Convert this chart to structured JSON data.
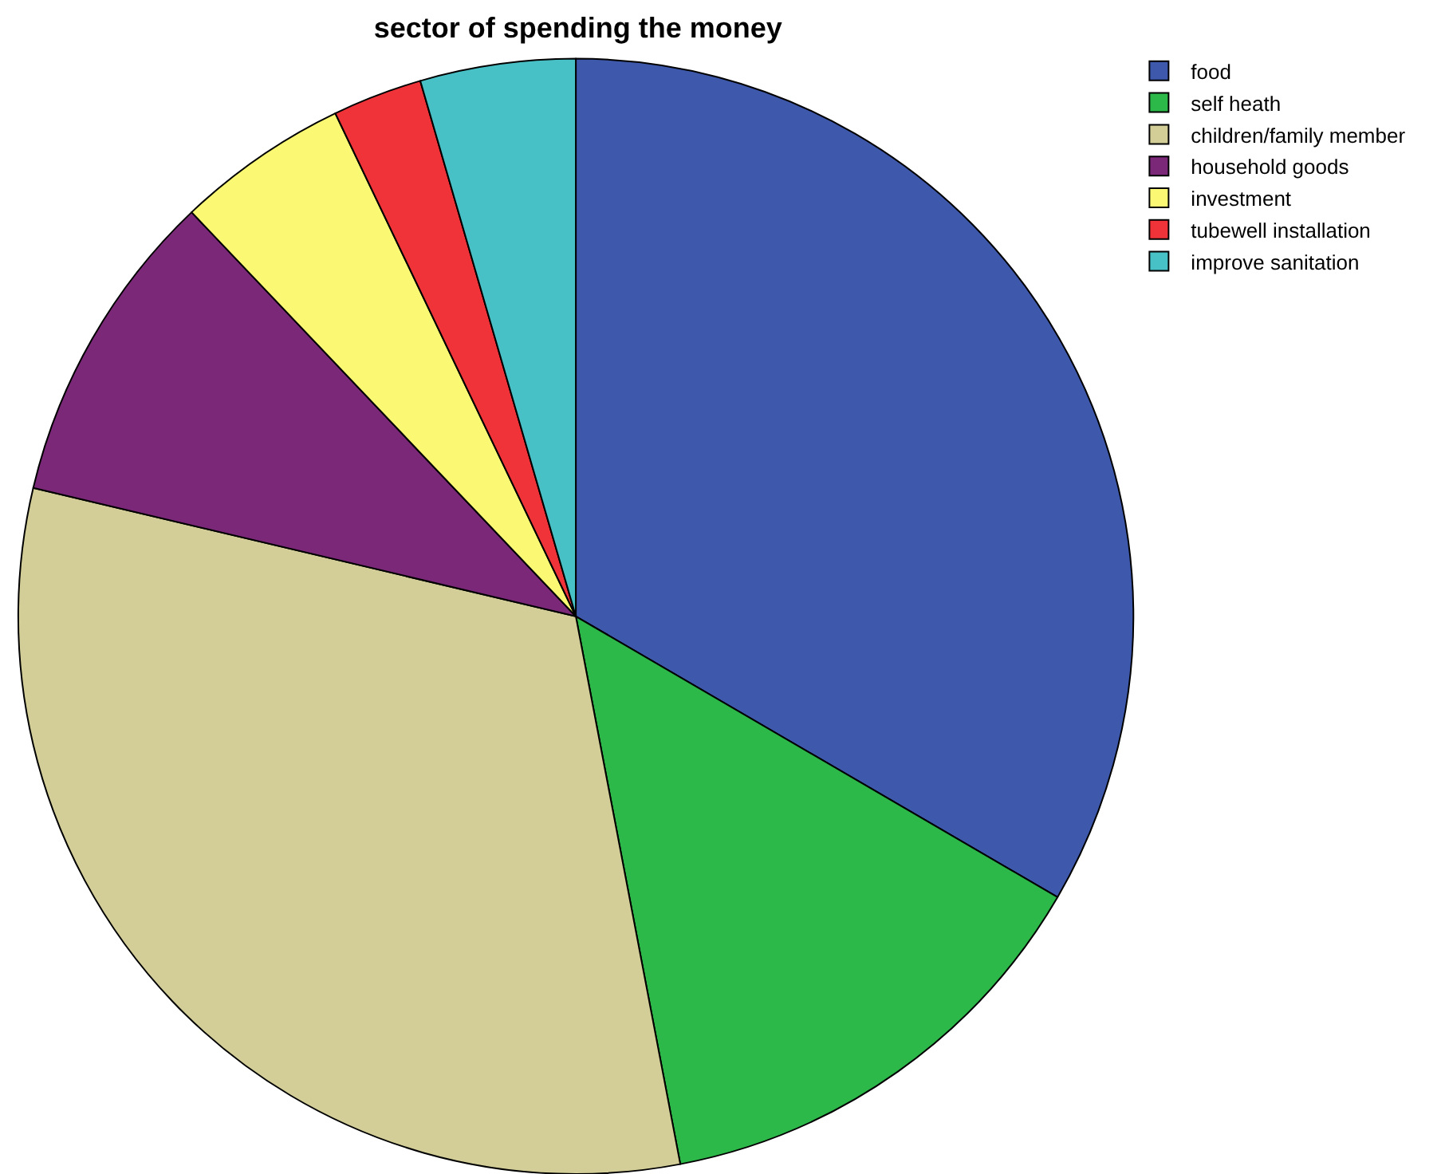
{
  "chart_data": {
    "type": "pie",
    "title": "sector of spending the money",
    "categories": [
      "food",
      "self heath",
      "children/family member",
      "household goods",
      "investment",
      "tubewell installation",
      "improve sanitation"
    ],
    "values": [
      33.4,
      13.6,
      31.7,
      9.2,
      5.0,
      2.6,
      4.5
    ],
    "colors": [
      "#3e58ac",
      "#2db84a",
      "#d3ce97",
      "#7b2878",
      "#fbf873",
      "#ef3339",
      "#48c1c6"
    ],
    "legend": "top right"
  }
}
